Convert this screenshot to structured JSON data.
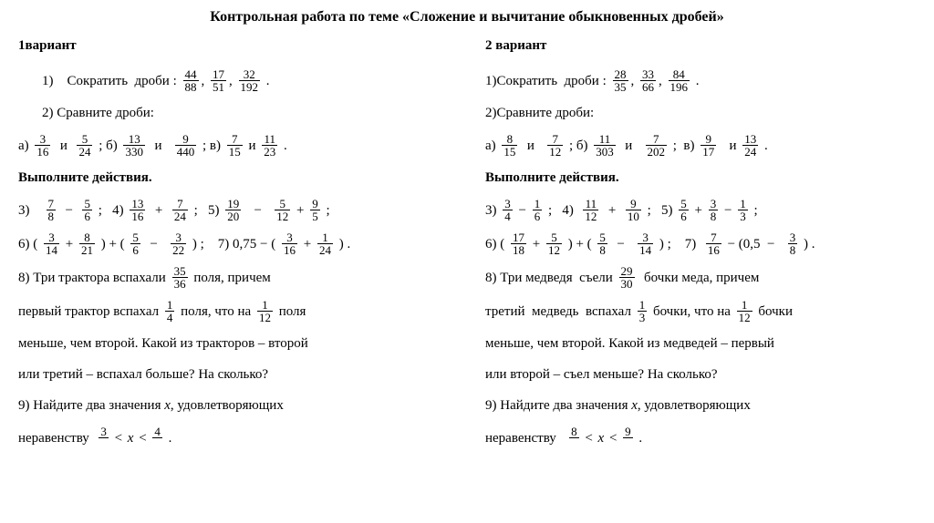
{
  "title": "Контрольная работа по теме «Сложение и вычитание обыкновенных дробей»",
  "v1": {
    "label": "1вариант",
    "t1_pre": "1)    Сократить  дроби : ",
    "t1_f": [
      [
        "44",
        "88"
      ],
      [
        "17",
        "51"
      ],
      [
        "32",
        "192"
      ]
    ],
    "t2_pre": "2)    Сравните дроби:",
    "t2a": {
      "pre": "а) ",
      "f1": [
        "3",
        "16"
      ],
      "mid": "  и  ",
      "f2": [
        "5",
        "24"
      ],
      "sep": " ; б) ",
      "f3": [
        "13",
        "330"
      ],
      "mid2": "  и   ",
      "f4": [
        "9",
        "440"
      ],
      "sep2": " ; в) ",
      "f5": [
        "7",
        "15"
      ],
      "mid3": " и ",
      "f6": [
        "11",
        "23"
      ],
      "end": " ."
    },
    "t_act": "Выполните действия.",
    "t3": {
      "pre": "3)    ",
      "f1": [
        "7",
        "8"
      ],
      "op1": "  −  ",
      "f2": [
        "5",
        "6"
      ],
      "s1": " ;   4) ",
      "f3": [
        "13",
        "16"
      ],
      "op2": "  +  ",
      "f4": [
        "7",
        "24"
      ],
      "s2": " ;   5) ",
      "f5": [
        "19",
        "20"
      ],
      "op3": "   −   ",
      "f6": [
        "5",
        "12"
      ],
      "op4": " + ",
      "f7": [
        "9",
        "5"
      ],
      "end": " ;"
    },
    "t6": {
      "pre": "6) ( ",
      "f1": [
        "3",
        "14"
      ],
      "op1": " + ",
      "f2": [
        "8",
        "21"
      ],
      "mid": " ) + ( ",
      "f3": [
        "5",
        "6"
      ],
      "op2": "  −   ",
      "f4": [
        "3",
        "22"
      ],
      "mid2": " ) ;    7) 0,75 − ( ",
      "f5": [
        "3",
        "16"
      ],
      "op3": " + ",
      "f6": [
        "1",
        "24"
      ],
      "end": " ) ."
    },
    "t8_1a": "8) Три трактора вспахали ",
    "t8_1f": [
      "35",
      "36"
    ],
    "t8_1b": " поля, причем",
    "t8_2a": "первый трактор вспахал ",
    "t8_2f": [
      "1",
      "4"
    ],
    "t8_2b": " поля, что на ",
    "t8_2f2": [
      "1",
      "12"
    ],
    "t8_2c": " поля",
    "t8_3": "меньше, чем второй. Какой из тракторов – второй",
    "t8_4": "или третий – вспахал больше? На сколько?",
    "t9_1": "9) Найдите два значения  ",
    "t9_x": "х",
    "t9_1b": ",  удовлетворяющих",
    "t9_2a": "неравенству  ",
    "t9_f1": [
      "3",
      ""
    ],
    "t9_lt": " < ",
    "t9_x2": " х ",
    "t9_lt2": " < ",
    "t9_f2": [
      "4",
      ""
    ],
    "t9_end": " ."
  },
  "v2": {
    "label": "2 вариант",
    "t1_pre": "1)Сократить  дроби : ",
    "t1_f": [
      [
        "28",
        "35"
      ],
      [
        "33",
        "66"
      ],
      [
        "84",
        "196"
      ]
    ],
    "t2_pre": "2)Сравните дроби:",
    "t2a": {
      "pre": "а) ",
      "f1": [
        "8",
        "15"
      ],
      "mid": "  и   ",
      "f2": [
        "7",
        "12"
      ],
      "sep": " ; б) ",
      "f3": [
        "11",
        "303"
      ],
      "mid2": "  и   ",
      "f4": [
        "7",
        "202"
      ],
      "sep2": " ;  в) ",
      "f5": [
        "9",
        "17"
      ],
      "mid3": "   и ",
      "f6": [
        "13",
        "24"
      ],
      "end": " ."
    },
    "t_act": "Выполните действия.",
    "t3": {
      "pre": "3) ",
      "f1": [
        "3",
        "4"
      ],
      "op1": " − ",
      "f2": [
        "1",
        "6"
      ],
      "s1": " ;   4)  ",
      "f3": [
        "11",
        "12"
      ],
      "op2": "  +  ",
      "f4": [
        "9",
        "10"
      ],
      "s2": " ;   5) ",
      "f5": [
        "5",
        "6"
      ],
      "op3": " + ",
      "f6": [
        "3",
        "8"
      ],
      "op4": " − ",
      "f7": [
        "1",
        "3"
      ],
      "end": " ;"
    },
    "t6": {
      "pre": "6) ( ",
      "f1": [
        "17",
        "18"
      ],
      "op1": " + ",
      "f2": [
        "5",
        "12"
      ],
      "mid": " ) + ( ",
      "f3": [
        "5",
        "8"
      ],
      "op2": "  −   ",
      "f4": [
        "3",
        "14"
      ],
      "mid2": " ) ;    7)  ",
      "f5": [
        "7",
        "16"
      ],
      "op3": " − (0,5  −   ",
      "f6": [
        "3",
        "8"
      ],
      "end": " ) ."
    },
    "t8_1a": "8) Три медведя  съели ",
    "t8_1f": [
      "29",
      "30"
    ],
    "t8_1b": "  бочки меда, причем",
    "t8_2a": "третий  медведь  вспахал ",
    "t8_2f": [
      "1",
      "3"
    ],
    "t8_2b": " бочки, что на ",
    "t8_2f2": [
      "1",
      "12"
    ],
    "t8_2c": " бочки",
    "t8_3": "меньше, чем второй. Какой из медведей – первый",
    "t8_4": "или второй  – съел меньше? На сколько?",
    "t9_1": "9) Найдите два значения ",
    "t9_x": "х",
    "t9_1b": ", удовлетворяющих",
    "t9_2a": "неравенству   ",
    "t9_f1": [
      "8",
      ""
    ],
    "t9_lt": " < ",
    "t9_x2": " х ",
    "t9_lt2": " < ",
    "t9_f2": [
      "9",
      ""
    ],
    "t9_end": " ."
  }
}
